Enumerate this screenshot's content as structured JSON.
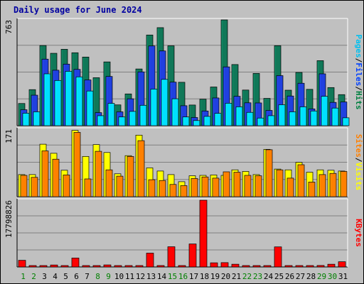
{
  "title": "Daily usage for June 2024",
  "chart_data": [
    {
      "type": "bar",
      "panel": "top",
      "ymax_label": "763",
      "ylim": [
        0,
        763
      ],
      "legend": [
        {
          "label": "Pages",
          "color": "#00c0f0"
        },
        {
          "label": "Files",
          "color": "#0040ff"
        },
        {
          "label": "Hits",
          "color": "#008040"
        }
      ],
      "legend_separator": "/",
      "categories": [
        "1",
        "2",
        "3",
        "4",
        "5",
        "6",
        "7",
        "8",
        "9",
        "10",
        "11",
        "12",
        "13",
        "14",
        "15",
        "16",
        "17",
        "18",
        "19",
        "20",
        "21",
        "22",
        "23",
        "24",
        "25",
        "26",
        "27",
        "28",
        "29",
        "30",
        "31"
      ],
      "series": [
        {
          "name": "Hits",
          "color": "#107858",
          "values": [
            160,
            260,
            578,
            522,
            551,
            526,
            495,
            346,
            460,
            150,
            229,
            409,
            654,
            707,
            576,
            313,
            149,
            191,
            279,
            763,
            441,
            257,
            377,
            197,
            577,
            256,
            384,
            262,
            469,
            275,
            224
          ]
        },
        {
          "name": "Files",
          "color": "#2040e0",
          "values": [
            115,
            220,
            480,
            400,
            444,
            406,
            330,
            94,
            355,
            100,
            194,
            388,
            575,
            539,
            314,
            144,
            59,
            106,
            200,
            424,
            212,
            165,
            164,
            110,
            361,
            214,
            306,
            121,
            374,
            168,
            171
          ]
        },
        {
          "name": "Pages",
          "color": "#00e0ff",
          "values": [
            90,
            100,
            374,
            326,
            392,
            352,
            250,
            72,
            161,
            63,
            103,
            147,
            264,
            334,
            194,
            63,
            37,
            67,
            89,
            162,
            136,
            96,
            55,
            72,
            151,
            100,
            136,
            106,
            212,
            127,
            57
          ]
        }
      ]
    },
    {
      "type": "bar",
      "panel": "middle",
      "ymax_label": "171",
      "ylim": [
        0,
        171
      ],
      "legend": [
        {
          "label": "Sites",
          "color": "#ff8000"
        },
        {
          "label": "Visits",
          "color": "#ffff00"
        }
      ],
      "legend_separator": "/",
      "series": [
        {
          "name": "Visits",
          "color": "#ffff00",
          "values": [
            56,
            56,
            133,
            110,
            67,
            168,
            102,
            132,
            112,
            58,
            104,
            156,
            73,
            65,
            56,
            38,
            53,
            54,
            55,
            54,
            68,
            64,
            56,
            120,
            70,
            68,
            87,
            62,
            68,
            67,
            65
          ]
        },
        {
          "name": "Sites",
          "color": "#ff8000",
          "values": [
            54,
            49,
            116,
            95,
            55,
            163,
            45,
            115,
            68,
            52,
            102,
            142,
            43,
            41,
            31,
            28,
            46,
            50,
            47,
            63,
            62,
            54,
            53,
            119,
            68,
            47,
            81,
            37,
            56,
            59,
            64
          ]
        }
      ]
    },
    {
      "type": "bar",
      "panel": "bottom",
      "ymax_label": "17798826",
      "ylim": [
        0,
        17798826
      ],
      "legend": [
        {
          "label": "KBytes",
          "color": "#ff0000"
        }
      ],
      "series": [
        {
          "name": "KBytes",
          "color": "#ff0000",
          "values": [
            1780000,
            222000,
            253000,
            530000,
            276000,
            2392000,
            218000,
            237000,
            550000,
            207000,
            239000,
            0,
            3693000,
            230000,
            5393000,
            0,
            6139000,
            17798826,
            1109000,
            1158000,
            733000,
            250000,
            269000,
            200000,
            5357000,
            200000,
            300000,
            300000,
            400000,
            731000,
            1400000
          ]
        }
      ]
    }
  ],
  "x_labels": [
    {
      "text": "1",
      "color": "#008000"
    },
    {
      "text": "2",
      "color": "#008000"
    },
    {
      "text": "3",
      "color": "#000000"
    },
    {
      "text": "4",
      "color": "#000000"
    },
    {
      "text": "5",
      "color": "#000000"
    },
    {
      "text": "6",
      "color": "#000000"
    },
    {
      "text": "7",
      "color": "#000000"
    },
    {
      "text": "8",
      "color": "#008000"
    },
    {
      "text": "9",
      "color": "#008000"
    },
    {
      "text": "10",
      "color": "#000000"
    },
    {
      "text": "11",
      "color": "#000000"
    },
    {
      "text": "12",
      "color": "#000000"
    },
    {
      "text": "13",
      "color": "#000000"
    },
    {
      "text": "14",
      "color": "#000000"
    },
    {
      "text": "15",
      "color": "#008000"
    },
    {
      "text": "16",
      "color": "#008000"
    },
    {
      "text": "17",
      "color": "#000000"
    },
    {
      "text": "18",
      "color": "#000000"
    },
    {
      "text": "19",
      "color": "#000000"
    },
    {
      "text": "20",
      "color": "#000000"
    },
    {
      "text": "21",
      "color": "#000000"
    },
    {
      "text": "22",
      "color": "#008000"
    },
    {
      "text": "23",
      "color": "#008000"
    },
    {
      "text": "24",
      "color": "#000000"
    },
    {
      "text": "25",
      "color": "#000000"
    },
    {
      "text": "26",
      "color": "#000000"
    },
    {
      "text": "27",
      "color": "#000000"
    },
    {
      "text": "28",
      "color": "#000000"
    },
    {
      "text": "29",
      "color": "#008000"
    },
    {
      "text": "30",
      "color": "#008000"
    },
    {
      "text": "31",
      "color": "#000000"
    }
  ],
  "colors": {
    "background": "#c0c0c0",
    "title": "#0000a0",
    "gridline": "#808080"
  }
}
